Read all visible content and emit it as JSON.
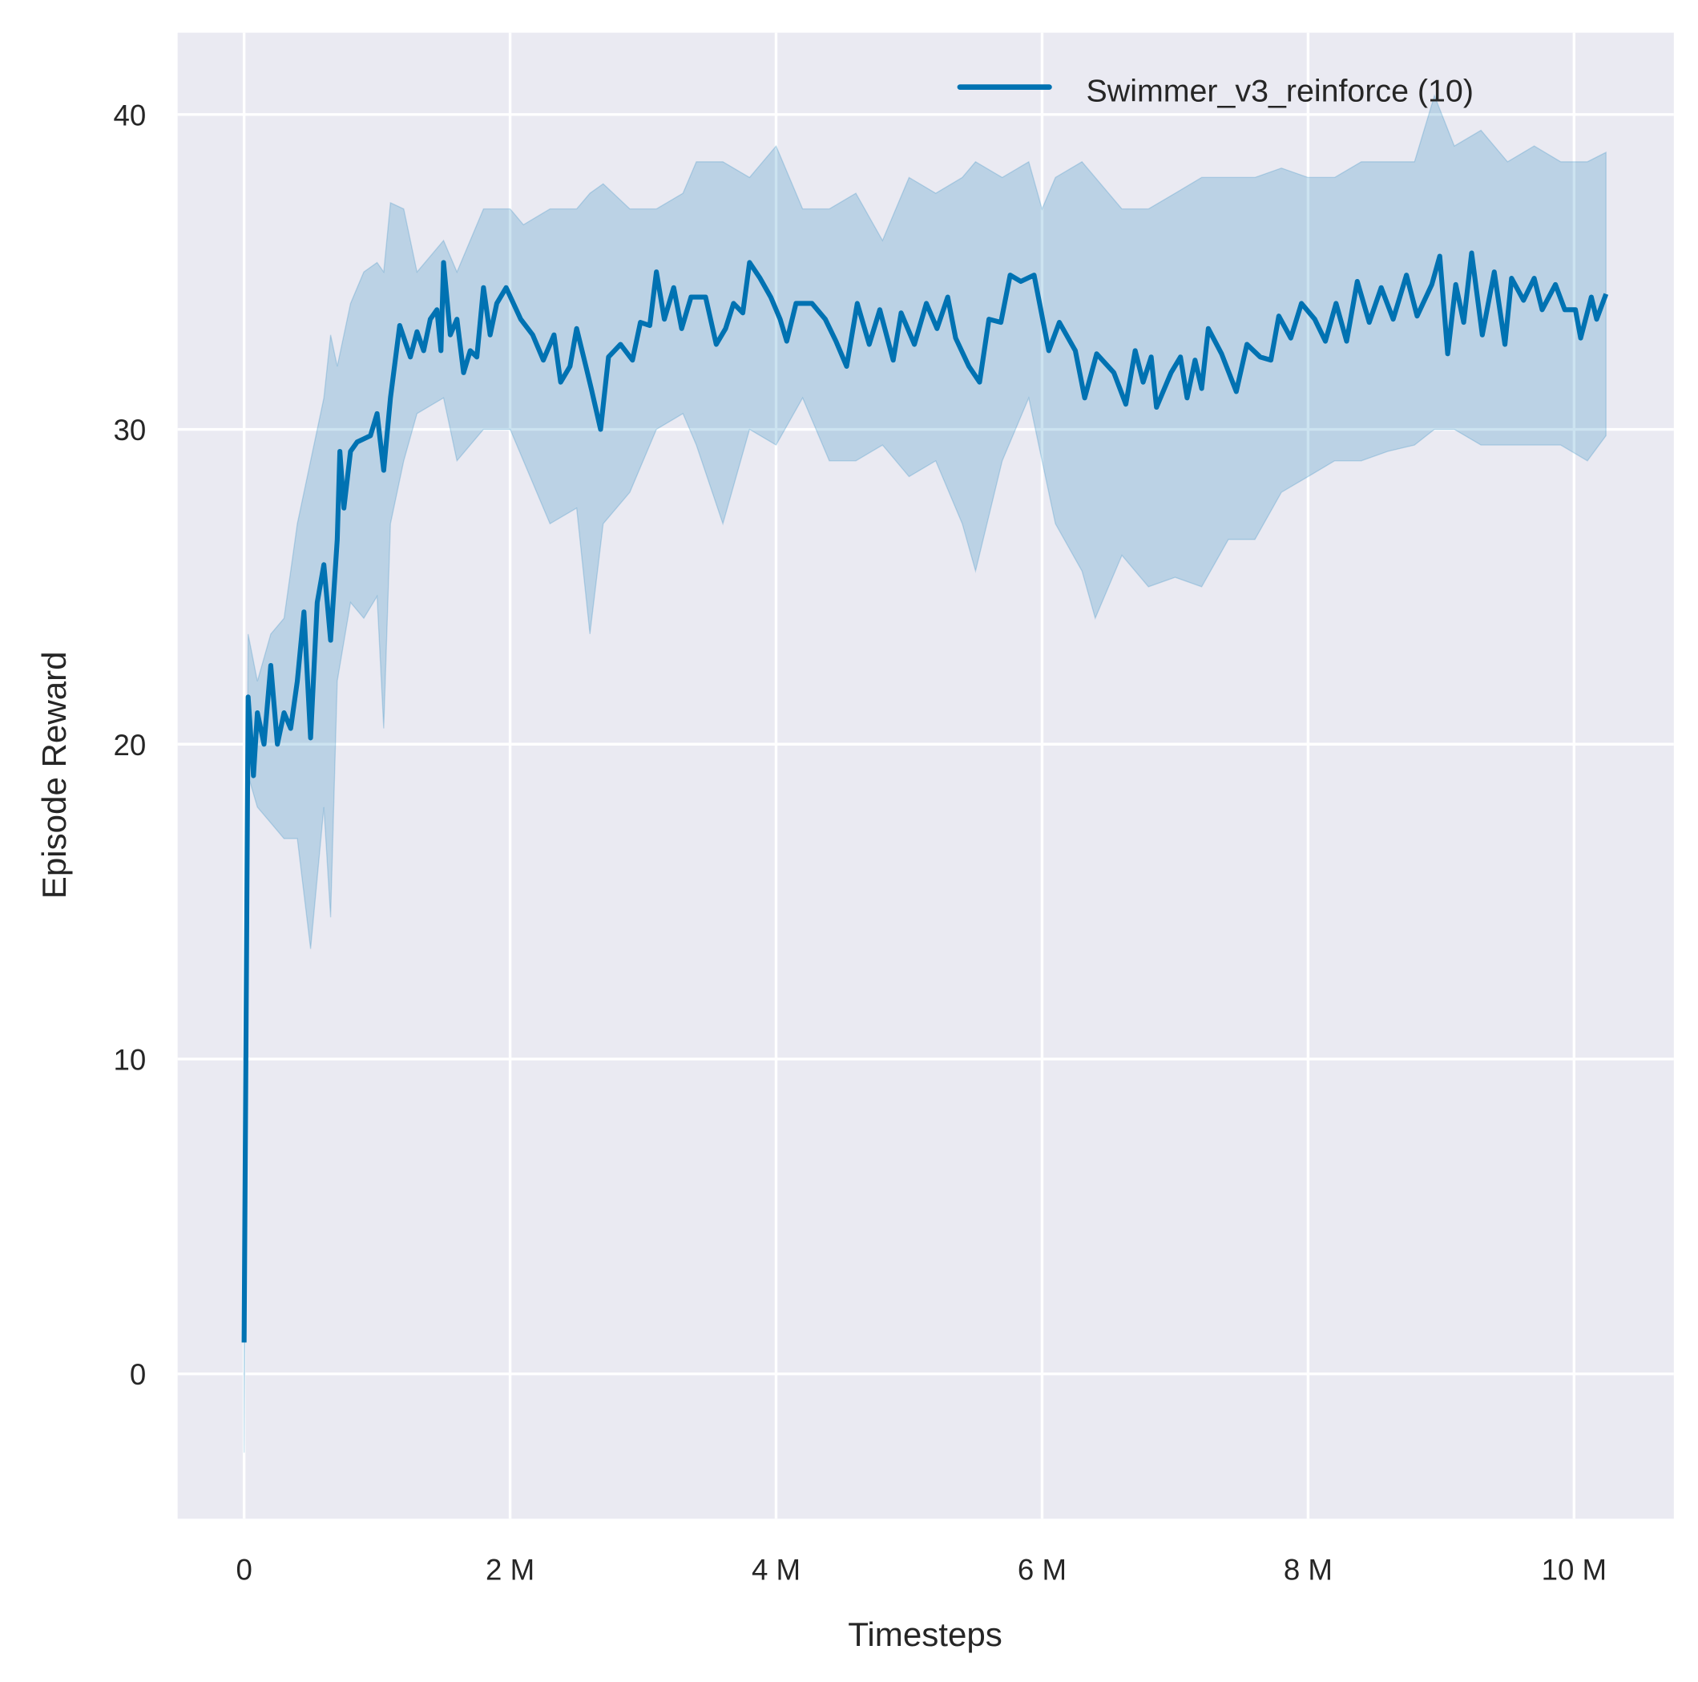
{
  "chart_data": {
    "type": "line",
    "xlabel": "Timesteps",
    "ylabel": "Episode Reward",
    "xlim": [
      -0.5,
      10.75
    ],
    "ylim": [
      -4.6,
      42.6
    ],
    "x_unit": "M",
    "xticks": [
      0,
      2,
      4,
      6,
      8,
      10
    ],
    "xtick_labels": [
      "0",
      "2 M",
      "4 M",
      "6 M",
      "8 M",
      "10 M"
    ],
    "yticks": [
      0,
      10,
      20,
      30,
      40
    ],
    "ytick_labels": [
      "0",
      "10",
      "20",
      "30",
      "40"
    ],
    "grid": true,
    "background": "#eaeaf2",
    "legend_position": "top-right",
    "series": [
      {
        "name": "Swimmer_v3_reinforce (10)",
        "color": "#0072b2",
        "x": [
          0,
          0.03,
          0.07,
          0.1,
          0.15,
          0.2,
          0.25,
          0.3,
          0.35,
          0.4,
          0.45,
          0.5,
          0.55,
          0.6,
          0.65,
          0.7,
          0.72,
          0.75,
          0.8,
          0.85,
          0.9,
          0.95,
          1.0,
          1.05,
          1.1,
          1.17,
          1.25,
          1.3,
          1.35,
          1.4,
          1.45,
          1.48,
          1.5,
          1.55,
          1.6,
          1.65,
          1.7,
          1.75,
          1.8,
          1.85,
          1.9,
          1.97,
          2.08,
          2.17,
          2.25,
          2.33,
          2.38,
          2.45,
          2.5,
          2.57,
          2.61,
          2.68,
          2.74,
          2.83,
          2.92,
          2.98,
          3.05,
          3.1,
          3.16,
          3.23,
          3.29,
          3.36,
          3.47,
          3.55,
          3.62,
          3.68,
          3.75,
          3.8,
          3.88,
          3.96,
          4.03,
          4.08,
          4.15,
          4.27,
          4.37,
          4.45,
          4.53,
          4.61,
          4.7,
          4.78,
          4.88,
          4.94,
          5.04,
          5.13,
          5.21,
          5.29,
          5.35,
          5.45,
          5.53,
          5.6,
          5.69,
          5.76,
          5.84,
          5.94,
          6.05,
          6.13,
          6.25,
          6.32,
          6.41,
          6.54,
          6.63,
          6.7,
          6.76,
          6.82,
          6.86,
          6.97,
          7.04,
          7.09,
          7.15,
          7.2,
          7.25,
          7.35,
          7.46,
          7.54,
          7.64,
          7.72,
          7.78,
          7.87,
          7.95,
          8.05,
          8.13,
          8.21,
          8.29,
          8.37,
          8.46,
          8.55,
          8.64,
          8.74,
          8.82,
          8.93,
          8.99,
          9.05,
          9.11,
          9.17,
          9.23,
          9.31,
          9.4,
          9.48,
          9.53,
          9.62,
          9.7,
          9.76,
          9.86,
          9.93,
          10.01,
          10.05,
          10.13,
          10.17,
          10.24
        ],
        "y": [
          1,
          21.5,
          19,
          21,
          20,
          22.5,
          20,
          21,
          20.5,
          22,
          24.2,
          20.2,
          24.5,
          25.7,
          23.3,
          26.5,
          29.3,
          27.5,
          29.3,
          29.6,
          29.7,
          29.8,
          30.5,
          28.7,
          31,
          33.3,
          32.3,
          33.1,
          32.5,
          33.5,
          33.8,
          32.5,
          35.3,
          33,
          33.5,
          31.8,
          32.5,
          32.3,
          34.5,
          33,
          34,
          34.5,
          33.5,
          33,
          32.2,
          33,
          31.5,
          32,
          33.2,
          32,
          31.3,
          30,
          32.3,
          32.7,
          32.2,
          33.4,
          33.3,
          35,
          33.5,
          34.5,
          33.2,
          34.2,
          34.2,
          32.7,
          33.2,
          34,
          33.7,
          35.3,
          34.8,
          34.2,
          33.5,
          32.8,
          34,
          34,
          33.5,
          32.8,
          32,
          34,
          32.7,
          33.8,
          32.2,
          33.7,
          32.7,
          34,
          33.2,
          34.2,
          32.9,
          32,
          31.5,
          33.5,
          33.4,
          34.9,
          34.7,
          34.9,
          32.5,
          33.4,
          32.5,
          31,
          32.4,
          31.8,
          30.8,
          32.5,
          31.5,
          32.3,
          30.7,
          31.8,
          32.3,
          31,
          32.2,
          31.3,
          33.2,
          32.4,
          31.2,
          32.7,
          32.3,
          32.2,
          33.6,
          32.9,
          34,
          33.5,
          32.8,
          34,
          32.8,
          34.7,
          33.4,
          34.5,
          33.5,
          34.9,
          33.6,
          34.6,
          35.5,
          32.4,
          34.6,
          33.4,
          35.6,
          33,
          35,
          32.7,
          34.8,
          34.1,
          34.8,
          33.8,
          34.6,
          33.8,
          33.8,
          32.9,
          34.2,
          33.5,
          34.3
        ]
      }
    ],
    "confidence_band": {
      "x": [
        0,
        0.03,
        0.1,
        0.2,
        0.3,
        0.4,
        0.5,
        0.6,
        0.65,
        0.7,
        0.8,
        0.9,
        1.0,
        1.05,
        1.1,
        1.2,
        1.3,
        1.5,
        1.6,
        1.8,
        2.0,
        2.1,
        2.3,
        2.5,
        2.6,
        2.7,
        2.9,
        3.1,
        3.3,
        3.4,
        3.6,
        3.8,
        4.0,
        4.2,
        4.4,
        4.6,
        4.8,
        5.0,
        5.2,
        5.4,
        5.5,
        5.7,
        5.9,
        6.0,
        6.1,
        6.3,
        6.4,
        6.6,
        6.8,
        7.0,
        7.2,
        7.4,
        7.6,
        7.8,
        8.0,
        8.2,
        8.4,
        8.6,
        8.8,
        8.95,
        9.1,
        9.3,
        9.5,
        9.7,
        9.9,
        10.1,
        10.24
      ],
      "upper": [
        1,
        23.5,
        22,
        23.5,
        24,
        27,
        29,
        31,
        33,
        32,
        34,
        35,
        35.3,
        35,
        37.2,
        37,
        35,
        36,
        35,
        37,
        37,
        36.5,
        37,
        37,
        37.5,
        37.8,
        37,
        37,
        37.5,
        38.5,
        38.5,
        38,
        39,
        37,
        37,
        37.5,
        36,
        38,
        37.5,
        38,
        38.5,
        38,
        38.5,
        37,
        38,
        38.5,
        38,
        37,
        37,
        37.5,
        38,
        38,
        38,
        38.3,
        38,
        38,
        38.5,
        38.5,
        38.5,
        40.6,
        39,
        39.5,
        38.5,
        39,
        38.5,
        38.5,
        38.8
      ],
      "lower": [
        -2.5,
        19,
        18,
        17.5,
        17,
        17,
        13.5,
        18,
        14.5,
        22,
        24.5,
        24,
        24.7,
        20.5,
        27,
        29,
        30.5,
        31,
        29,
        30,
        30,
        29,
        27,
        27.5,
        23.5,
        27,
        28,
        30,
        30.5,
        29.5,
        27,
        30,
        29.5,
        31,
        29,
        29,
        29.5,
        28.5,
        29,
        27,
        25.5,
        29,
        31,
        29,
        27,
        25.5,
        24,
        26,
        25,
        25.3,
        25,
        26.5,
        26.5,
        28,
        28.5,
        29,
        29,
        29.3,
        29.5,
        30,
        30,
        29.5,
        29.5,
        29.5,
        29.5,
        29,
        29.8
      ]
    }
  }
}
